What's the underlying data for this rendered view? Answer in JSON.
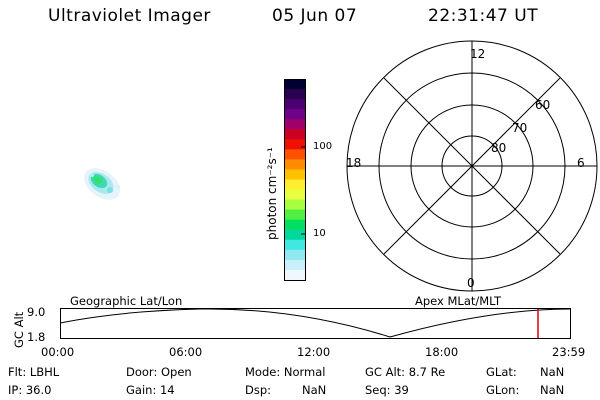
{
  "header": {
    "title": "Ultraviolet Imager",
    "date": "05 Jun 07",
    "time": "22:31:47 UT"
  },
  "colorbar": {
    "label": "photon cm⁻²s⁻¹",
    "ticks": [
      "100",
      "10"
    ],
    "colors": [
      "#000030",
      "#2a0050",
      "#4a0070",
      "#70008a",
      "#a0006a",
      "#cc0022",
      "#ee1100",
      "#ff5000",
      "#ff8c00",
      "#ffc000",
      "#ffee30",
      "#e8ff40",
      "#a8ff40",
      "#50f040",
      "#00e060",
      "#00d8a0",
      "#40e8e0",
      "#90e8f0",
      "#c8f0f8",
      "#f0f8ff"
    ]
  },
  "polar_plot": {
    "mlt_labels": [
      "12",
      "6",
      "0",
      "18"
    ],
    "lat_labels": [
      "60",
      "70",
      "80"
    ]
  },
  "timeline": {
    "left_title": "Geographic Lat/Lon",
    "right_title": "Apex MLat/MLT",
    "y_axis_label": "GC Alt",
    "y_ticks": [
      "9.0",
      "1.8"
    ],
    "x_ticks": [
      "00:00",
      "06:00",
      "12:00",
      "18:00",
      "23:59"
    ],
    "marker_color": "#e00000"
  },
  "status": {
    "flt": "Flt: LBHL",
    "ip": "IP: 36.0",
    "door": "Door: Open",
    "gain": "Gain: 14",
    "mode": "Mode: Normal",
    "dsp_label": "Dsp:",
    "dsp_value": "NaN",
    "gc_alt": "GC Alt: 8.7 Re",
    "seq": "Seq: 39",
    "glat_label": "GLat:",
    "glat_value": "NaN",
    "glon_label": "GLon:",
    "glon_value": "NaN"
  }
}
